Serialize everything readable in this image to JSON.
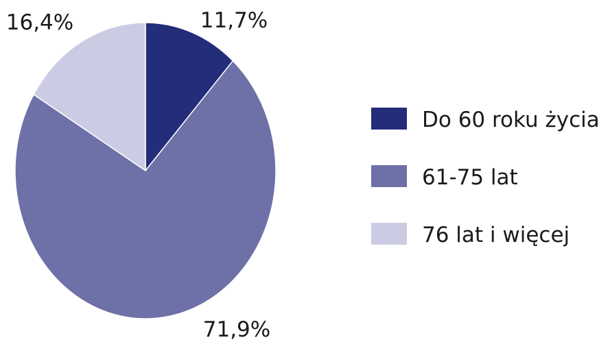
{
  "chart_data": {
    "type": "pie",
    "categories": [
      "Do 60 roku życia",
      "61-75 lat",
      "76 lat i więcej"
    ],
    "values": [
      11.7,
      71.9,
      16.4
    ],
    "value_labels": [
      "11,7%",
      "71,9%",
      "16,4%"
    ],
    "unit": "%",
    "colors": [
      "#232d7a",
      "#6e70a8",
      "#cbcbe3"
    ],
    "start_angle": "12 o'clock",
    "direction": "clockwise",
    "legend": {
      "position": "right",
      "entries": [
        "Do 60 roku życia",
        "61-75 lat",
        "76 lat i więcej"
      ]
    }
  }
}
